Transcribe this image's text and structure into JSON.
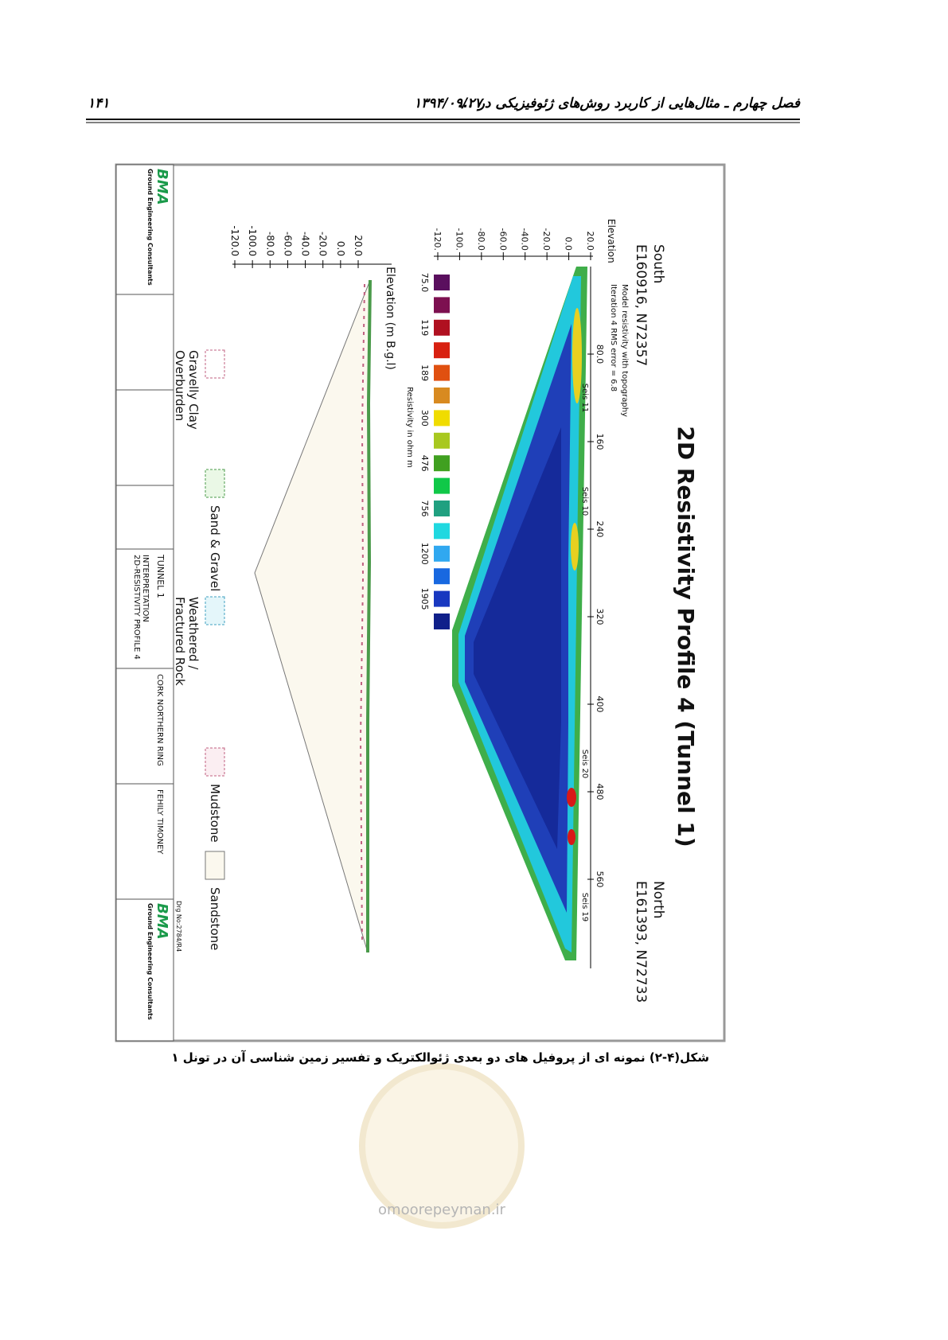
{
  "header": {
    "chapter": "فصل چهارم ـ مثال‌هایی از کاربرد روش‌های ژئوفیزیکی در ...",
    "date": "۱۳۹۴/۰۹/۲۷",
    "page_number": "۱۴۱"
  },
  "figure": {
    "title": "2D Resistivity Profile 4  (Tunnel 1)",
    "start": {
      "label": "South",
      "coords": "E160916, N72357"
    },
    "end": {
      "label": "North",
      "coords": "E161393, N72733"
    },
    "model_note": "Model resistivity with topography",
    "iteration_note": "Iteration 4 RMS error = 6.8",
    "elevation_label": "Elevation",
    "elevation_ticks": [
      "20.0",
      "0.0",
      "-20.0",
      "-40.0",
      "-60.0",
      "-80.0",
      "-100.",
      "-120."
    ],
    "distance_ticks": [
      "80.0",
      "160",
      "240",
      "320",
      "400",
      "480",
      "560"
    ],
    "seismic_labels": [
      "Seis 11",
      "Seis 10",
      "Seis 20",
      "Seis 19"
    ],
    "scale_labels": [
      "75.0",
      "119",
      "189",
      "300",
      "476",
      "756",
      "1200",
      "1905"
    ],
    "scale_title": "Resistivity in ohm m",
    "section_elevation_label": "Elevation (m B.g.l)",
    "section_ticks": [
      "20.0",
      "0.0",
      "-20.0",
      "-40.0",
      "-60.0",
      "-80.0",
      "-100.0",
      "-120.0"
    ],
    "legend": [
      [
        "Gravelly Clay",
        "Overburden"
      ],
      [
        "Sand & Gravel"
      ],
      [
        "Weathered /",
        "Fractured Rock"
      ],
      [
        "Mudstone"
      ],
      [
        "Sandstone"
      ]
    ],
    "title_block": {
      "company": "BMA",
      "company_sub": "Ground Engineering Consultants",
      "title": "TUNNEL 1",
      "subtitle_lines": [
        "INTERPRETATION",
        "2D-RESISTIVITY PROFILE 4"
      ],
      "job": "CORK NORTHERN RING",
      "client": "FEHILY TIMONEY",
      "drawing_no": "Drg No:2784/R4"
    }
  },
  "caption": "شکل(۴-۲)  نمونه ای از پروفیل های دو بعدی ژئوالکتریک و تفسیر زمین شناسی آن در تونل ۱",
  "watermark": "omoorepeyman.ir"
}
